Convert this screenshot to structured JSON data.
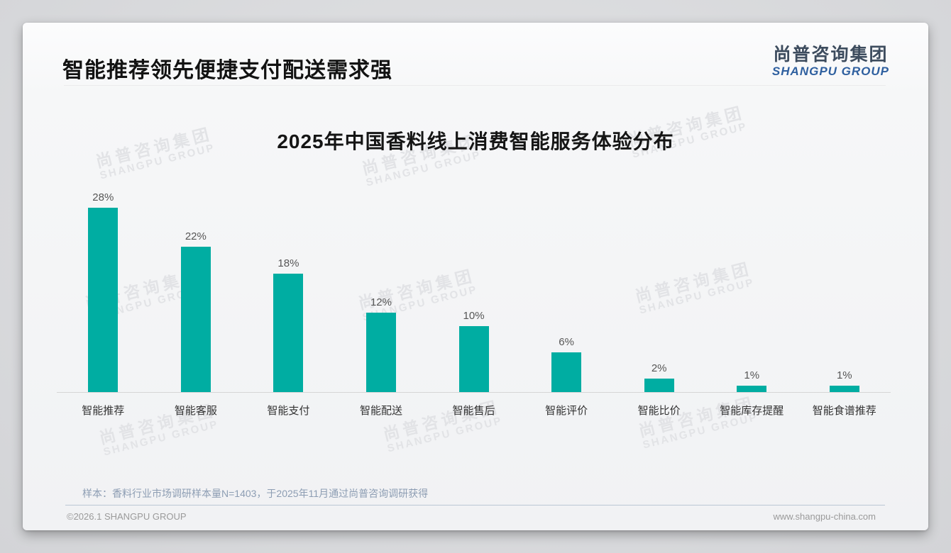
{
  "header": {
    "title": "智能推荐领先便捷支付配送需求强"
  },
  "logo": {
    "zh": "尚普咨询集团",
    "en": "SHANGPU GROUP"
  },
  "watermark": {
    "zh": "尚普咨询集团",
    "en": "SHANGPU GROUP"
  },
  "chart_data": {
    "type": "bar",
    "title": "2025年中国香料线上消费智能服务体验分布",
    "categories": [
      "智能推荐",
      "智能客服",
      "智能支付",
      "智能配送",
      "智能售后",
      "智能评价",
      "智能比价",
      "智能库存提醒",
      "智能食谱推荐"
    ],
    "values": [
      28,
      22,
      18,
      12,
      10,
      6,
      2,
      1,
      1
    ],
    "value_labels": [
      "28%",
      "22%",
      "18%",
      "12%",
      "10%",
      "6%",
      "2%",
      "1%",
      "1%"
    ],
    "unit": "%",
    "bar_color": "#00ada2",
    "ylim": [
      0,
      30
    ],
    "grid": false,
    "legend": "none",
    "xlabel": "",
    "ylabel": ""
  },
  "note": "样本：香料行业市场调研样本量N=1403，于2025年11月通过尚普咨询调研获得",
  "footer": {
    "left": "©2026.1 SHANGPU GROUP",
    "right": "www.shangpu-china.com"
  },
  "colors": {
    "accent_teal": "#00ada2",
    "logo_blue": "#2e5f9f"
  }
}
